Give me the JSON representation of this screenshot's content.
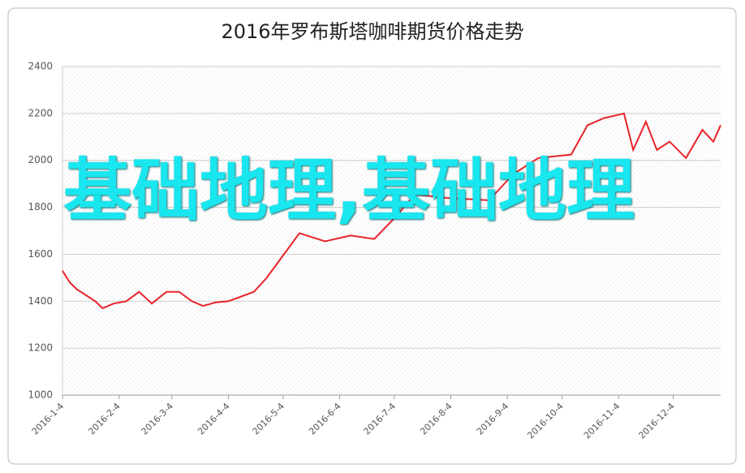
{
  "chart_data": {
    "type": "line",
    "title": "2016年罗布斯塔咖啡期货价格走势",
    "overlay_text": "基础地理,基础地理",
    "x": [
      "2016-1-4",
      "2016-1-8",
      "2016-1-12",
      "2016-1-18",
      "2016-1-22",
      "2016-1-26",
      "2016-2-1",
      "2016-2-8",
      "2016-2-15",
      "2016-2-22",
      "2016-3-1",
      "2016-3-8",
      "2016-3-15",
      "2016-3-21",
      "2016-3-28",
      "2016-4-4",
      "2016-4-11",
      "2016-4-18",
      "2016-4-25",
      "2016-5-4",
      "2016-5-13",
      "2016-5-27",
      "2016-6-10",
      "2016-6-23",
      "2016-7-6",
      "2016-7-15",
      "2016-8-2",
      "2016-8-25",
      "2016-9-7",
      "2016-9-21",
      "2016-10-9",
      "2016-10-18",
      "2016-10-27",
      "2016-11-7",
      "2016-11-12",
      "2016-11-19",
      "2016-11-25",
      "2016-12-2",
      "2016-12-11",
      "2016-12-20",
      "2016-12-26",
      "2016-12-30"
    ],
    "series": [
      {
        "color": "#e8232a",
        "values": [
          1530,
          1480,
          1450,
          1420,
          1400,
          1370,
          1390,
          1400,
          1440,
          1390,
          1440,
          1440,
          1400,
          1380,
          1395,
          1400,
          1420,
          1440,
          1500,
          1595,
          1690,
          1655,
          1680,
          1665,
          1770,
          1855,
          1840,
          1830,
          1940,
          2010,
          2025,
          2150,
          2180,
          2200,
          2045,
          2165,
          2045,
          2080,
          2010,
          2130,
          2080,
          2150
        ]
      }
    ],
    "xlim": [
      "2016-1-4",
      "2016-12-30"
    ],
    "xticks": [
      "2016-1-4",
      "2016-2-4",
      "2016-3-4",
      "2016-4-4",
      "2016-5-4",
      "2016-6-4",
      "2016-7-4",
      "2016-8-4",
      "2016-9-4",
      "2016-10-4",
      "2016-11-4",
      "2016-12-4"
    ],
    "ylim": [
      1000,
      2400
    ],
    "yticks": [
      1000,
      1200,
      1400,
      1600,
      1800,
      2000,
      2200,
      2400
    ],
    "grid": true
  }
}
